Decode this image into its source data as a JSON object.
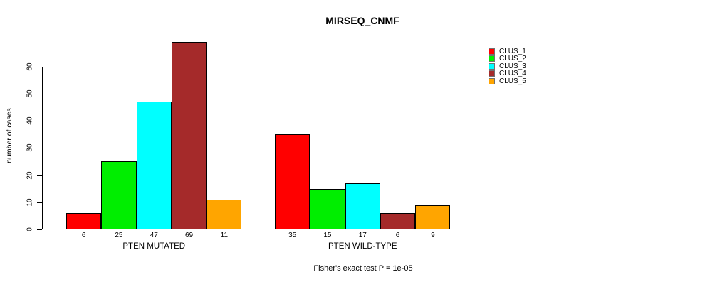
{
  "chart_data": {
    "type": "bar",
    "title": "MIRSEQ_CNMF",
    "ylabel": "number of cases",
    "xlabel": "",
    "ylim": [
      0,
      60
    ],
    "yticks": [
      0,
      10,
      20,
      30,
      40,
      50,
      60
    ],
    "grid": false,
    "legend_position": "right",
    "categories": [
      "PTEN MUTATED",
      "PTEN WILD-TYPE"
    ],
    "series": [
      {
        "name": "CLUS_1",
        "color": "#FF0000",
        "values": [
          6,
          35
        ]
      },
      {
        "name": "CLUS_2",
        "color": "#00EE00",
        "values": [
          25,
          15
        ]
      },
      {
        "name": "CLUS_3",
        "color": "#00FFFF",
        "values": [
          47,
          17
        ]
      },
      {
        "name": "CLUS_4",
        "color": "#A52A2A",
        "values": [
          69,
          6
        ]
      },
      {
        "name": "CLUS_5",
        "color": "#FFA500",
        "values": [
          11,
          9
        ]
      }
    ],
    "bar_value_labels_shown": true,
    "footer": "Fisher's exact test P = 1e-05"
  }
}
